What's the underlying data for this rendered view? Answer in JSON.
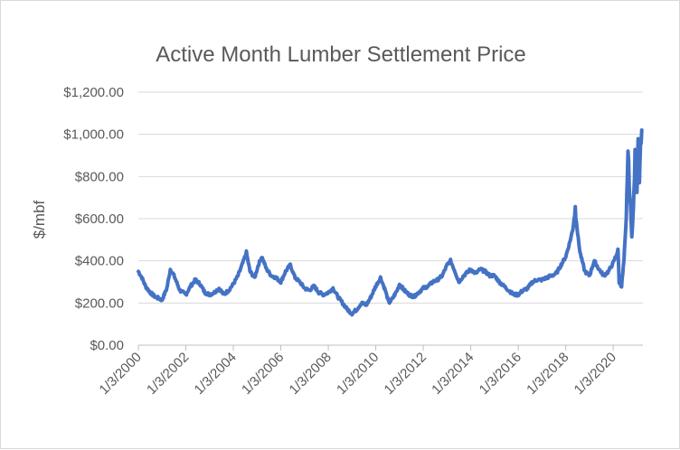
{
  "chart_data": {
    "type": "line",
    "title": "Active Month Lumber Settlement Price",
    "xlabel": "",
    "ylabel": "$/mbf",
    "ylim": [
      0,
      1200
    ],
    "xlim": [
      2000.0,
      2021.25
    ],
    "grid": true,
    "legend": "none",
    "y_ticks": [
      0,
      200,
      400,
      600,
      800,
      1000,
      1200
    ],
    "y_tick_labels": [
      "$0.00",
      "$200.00",
      "$400.00",
      "$600.00",
      "$800.00",
      "$1,000.00",
      "$1,200.00"
    ],
    "x_tick_labels": [
      "1/3/2000",
      "1/3/2002",
      "1/3/2004",
      "1/3/2006",
      "1/3/2008",
      "1/3/2010",
      "1/3/2012",
      "1/3/2014",
      "1/3/2016",
      "1/3/2018",
      "1/3/2020"
    ],
    "x_tick_years": [
      2000,
      2002,
      2004,
      2006,
      2008,
      2010,
      2012,
      2014,
      2016,
      2018,
      2020
    ],
    "series": [
      {
        "name": "Active Month Lumber Settlement Price",
        "color": "#4472C4",
        "x": [
          2000.0,
          2000.15,
          2000.3,
          2000.5,
          2000.7,
          2000.9,
          2001.0,
          2001.2,
          2001.35,
          2001.5,
          2001.75,
          2002.0,
          2002.2,
          2002.4,
          2002.6,
          2002.8,
          2003.0,
          2003.2,
          2003.4,
          2003.6,
          2003.8,
          2004.0,
          2004.2,
          2004.4,
          2004.55,
          2004.7,
          2004.9,
          2005.05,
          2005.2,
          2005.4,
          2005.6,
          2005.8,
          2006.0,
          2006.2,
          2006.4,
          2006.6,
          2006.8,
          2007.0,
          2007.2,
          2007.4,
          2007.6,
          2007.8,
          2008.0,
          2008.2,
          2008.4,
          2008.6,
          2008.8,
          2009.0,
          2009.2,
          2009.4,
          2009.6,
          2009.8,
          2010.0,
          2010.2,
          2010.4,
          2010.55,
          2010.7,
          2010.9,
          2011.0,
          2011.2,
          2011.4,
          2011.6,
          2011.8,
          2012.0,
          2012.2,
          2012.4,
          2012.6,
          2012.8,
          2013.0,
          2013.15,
          2013.3,
          2013.5,
          2013.7,
          2013.9,
          2014.0,
          2014.2,
          2014.4,
          2014.6,
          2014.8,
          2015.0,
          2015.2,
          2015.4,
          2015.6,
          2015.8,
          2016.0,
          2016.2,
          2016.4,
          2016.6,
          2016.8,
          2017.0,
          2017.2,
          2017.4,
          2017.6,
          2017.8,
          2018.0,
          2018.15,
          2018.3,
          2018.4,
          2018.5,
          2018.6,
          2018.8,
          2019.0,
          2019.2,
          2019.4,
          2019.6,
          2019.8,
          2020.0,
          2020.1,
          2020.2,
          2020.25,
          2020.35,
          2020.45,
          2020.55,
          2020.62,
          2020.7,
          2020.78,
          2020.85,
          2020.92,
          2021.0,
          2021.05,
          2021.1,
          2021.15,
          2021.2
        ],
        "values": [
          350,
          320,
          280,
          250,
          230,
          220,
          215,
          270,
          360,
          330,
          260,
          240,
          280,
          310,
          290,
          250,
          240,
          250,
          270,
          240,
          260,
          290,
          330,
          390,
          440,
          350,
          320,
          380,
          420,
          360,
          330,
          320,
          300,
          350,
          380,
          320,
          300,
          270,
          260,
          280,
          250,
          240,
          250,
          270,
          230,
          200,
          170,
          150,
          170,
          200,
          190,
          230,
          280,
          320,
          260,
          200,
          220,
          260,
          290,
          260,
          240,
          230,
          250,
          270,
          280,
          300,
          310,
          330,
          380,
          400,
          360,
          300,
          330,
          350,
          360,
          340,
          360,
          350,
          330,
          330,
          300,
          280,
          260,
          240,
          240,
          260,
          270,
          300,
          310,
          310,
          320,
          330,
          340,
          380,
          420,
          480,
          550,
          650,
          530,
          440,
          350,
          330,
          400,
          360,
          330,
          350,
          390,
          420,
          450,
          300,
          280,
          400,
          600,
          920,
          700,
          520,
          640,
          900,
          750,
          1000,
          800,
          950,
          1020
        ]
      }
    ]
  }
}
